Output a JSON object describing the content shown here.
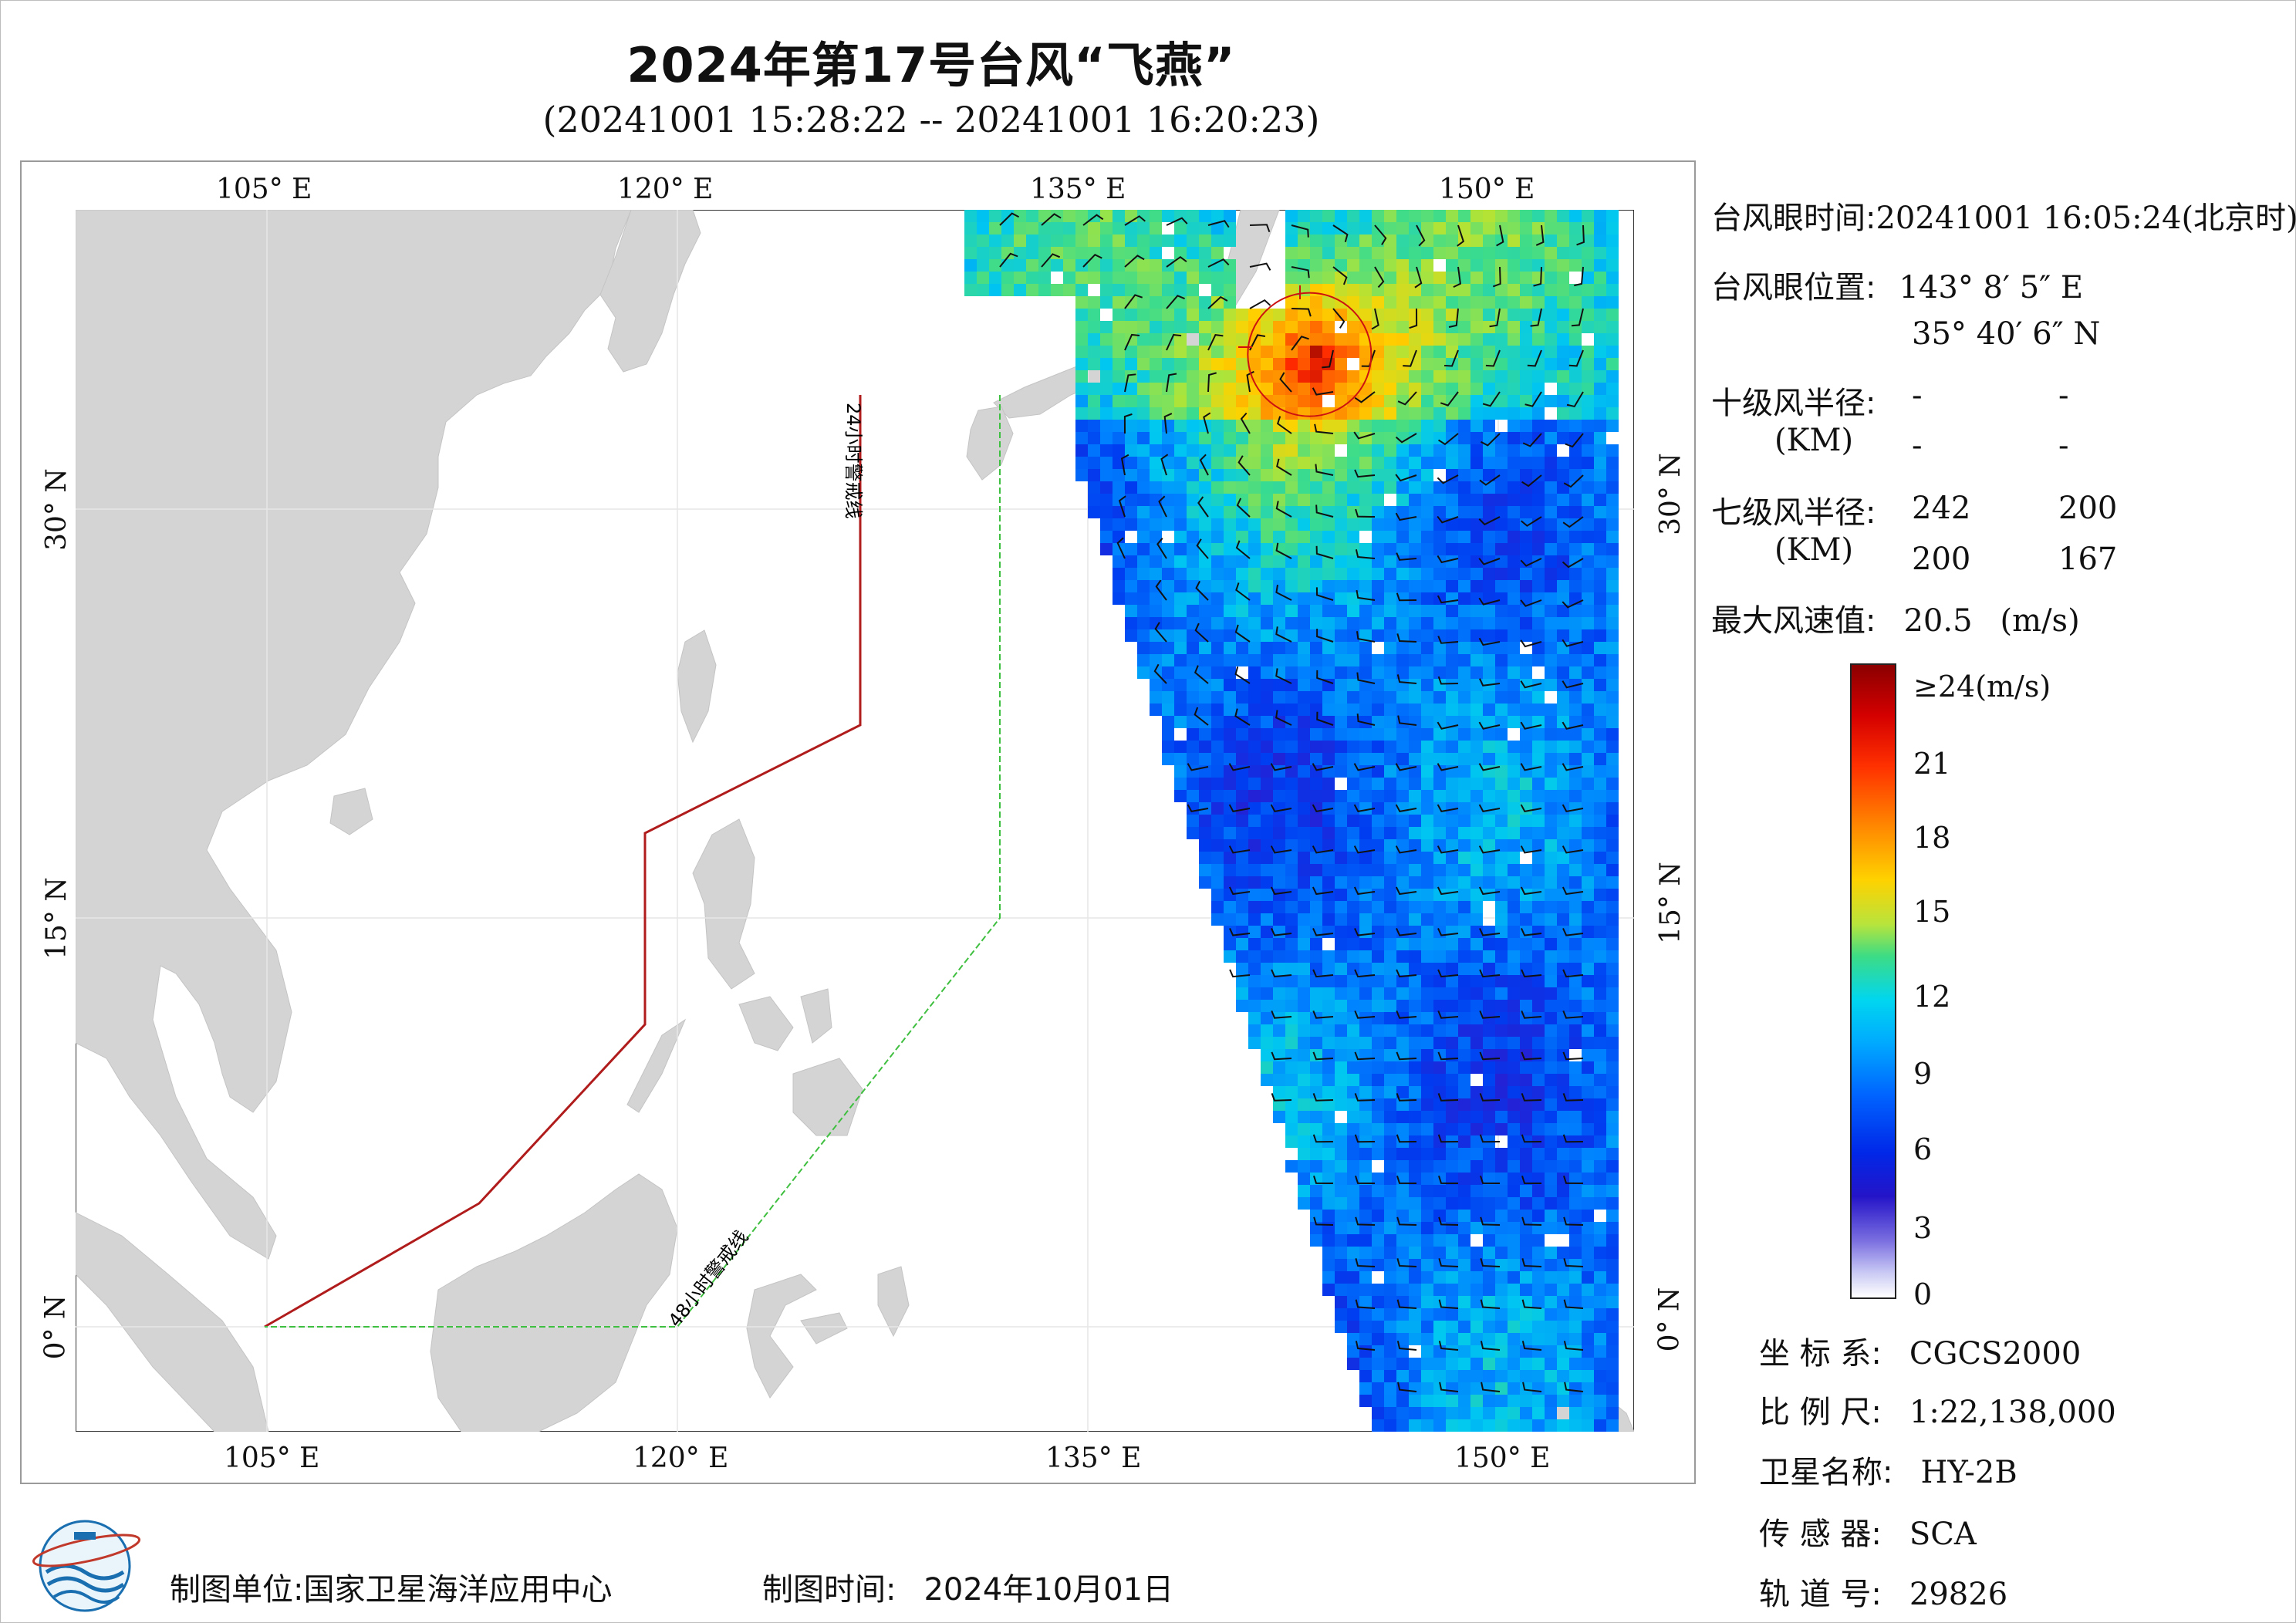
{
  "title": "2024年第17号台风“飞燕”",
  "subtitle": "(20241001 15:28:22 -- 20241001 16:20:23)",
  "map": {
    "top_ticks": [
      "105° E",
      "120° E",
      "135° E",
      "150° E"
    ],
    "bottom_ticks": [
      "105° E",
      "120° E",
      "135° E",
      "150° E"
    ],
    "left_ticks": [
      "30° N",
      "15° N",
      "0° N"
    ],
    "right_ticks": [
      "30° N",
      "15° N",
      "0° N"
    ],
    "warning_24h": "24小时警戒线",
    "warning_48h": "48小时警戒线",
    "lon_range": [
      98,
      155
    ],
    "lat_range": [
      -4,
      41
    ],
    "typhoon_center": {
      "lon": 143.13,
      "lat": 35.67
    },
    "colors": {
      "land": "#d4d4d4",
      "line_24h": "#b01c1c",
      "line_48h": "#3fbf3f",
      "storm_circle": "#cc1111"
    }
  },
  "info": {
    "eye_time_label": "台风眼时间:",
    "eye_time_value": "20241001 16:05:24(北京时)",
    "eye_pos_label": "台风眼位置:",
    "eye_lon": "143° 8′ 5″ E",
    "eye_lat": "35° 40′ 6″ N",
    "r10_label": "十级风半径:",
    "r10_unit": "(KM)",
    "r10_values": [
      "-",
      "-",
      "-",
      "-"
    ],
    "r7_label": "七级风半径:",
    "r7_unit": "(KM)",
    "r7_values": [
      "242",
      "200",
      "200",
      "167"
    ],
    "max_wind_label": "最大风速值:",
    "max_wind_value": "20.5",
    "max_wind_unit": "(m/s)"
  },
  "colorbar": {
    "labels": [
      "≥24(m/s)",
      "21",
      "18",
      "15",
      "12",
      "9",
      "6",
      "3",
      "0"
    ],
    "min": 0,
    "max": 24
  },
  "meta": {
    "crs_label": "坐 标 系:",
    "crs_value": "CGCS2000",
    "scale_label": "比 例 尺:",
    "scale_value": "1:22,138,000",
    "sat_label": "卫星名称:",
    "sat_value": "HY-2B",
    "sensor_label": "传 感 器:",
    "sensor_value": "SCA",
    "orbit_label": "轨 道 号:",
    "orbit_value": "29826"
  },
  "footer": {
    "org_label": "制图单位:",
    "org_value": "国家卫星海洋应用中心",
    "date_label": "制图时间:",
    "date_value": "2024年10月01日"
  }
}
